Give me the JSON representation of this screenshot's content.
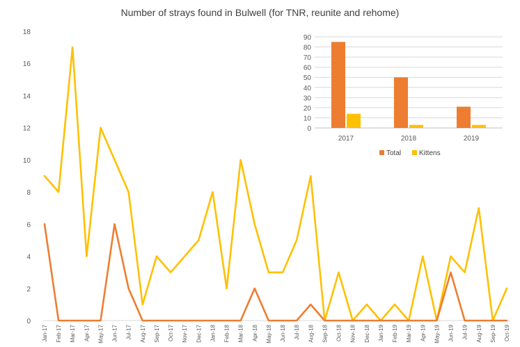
{
  "chart_data": [
    {
      "type": "line",
      "title": "Number of strays found in Bulwell (for TNR, reunite and rehome)",
      "xlabel": "",
      "ylabel": "",
      "ylim": [
        0,
        18
      ],
      "yticks": [
        0,
        2,
        4,
        6,
        8,
        10,
        12,
        14,
        16,
        18
      ],
      "grid": false,
      "legend": "none",
      "categories": [
        "Jan-17",
        "Feb-17",
        "Mar-17",
        "Apr-17",
        "May-17",
        "Jun-17",
        "Jul-17",
        "Aug-17",
        "Sep-17",
        "Oct-17",
        "Nov-17",
        "Dec-17",
        "Jan-18",
        "Feb-18",
        "Mar-18",
        "Apr-18",
        "May-18",
        "Jun-18",
        "Jul-18",
        "Aug-18",
        "Sep-18",
        "Oct-18",
        "Nov-18",
        "Dec-18",
        "Jan-19",
        "Feb-19",
        "Mar-19",
        "Apr-19",
        "May-19",
        "Jun-19",
        "Jul-19",
        "Aug-19",
        "Sep-19",
        "Oct-19"
      ],
      "series": [
        {
          "color": "#FFC000",
          "values": [
            9,
            8,
            17,
            4,
            12,
            10,
            8,
            1,
            4,
            3,
            4,
            5,
            8,
            2,
            10,
            6,
            3,
            3,
            5,
            9,
            0,
            3,
            0,
            1,
            0,
            1,
            0,
            4,
            0,
            4,
            3,
            7,
            0,
            2
          ]
        },
        {
          "color": "#ED7D31",
          "values": [
            6,
            0,
            0,
            0,
            0,
            6,
            2,
            0,
            0,
            0,
            0,
            0,
            0,
            0,
            0,
            2,
            0,
            0,
            0,
            1,
            0,
            0,
            0,
            0,
            0,
            0,
            0,
            0,
            0,
            3,
            0,
            0,
            0,
            0
          ]
        }
      ]
    },
    {
      "type": "bar",
      "title": "",
      "categories": [
        "2017",
        "2018",
        "2019"
      ],
      "ylim": [
        0,
        90
      ],
      "yticks": [
        0,
        10,
        20,
        30,
        40,
        50,
        60,
        70,
        80,
        90
      ],
      "grid": true,
      "legend": "bottom",
      "series": [
        {
          "name": "Total",
          "color": "#ED7D31",
          "values": [
            85,
            50,
            21
          ]
        },
        {
          "name": "Kittens",
          "color": "#FFC000",
          "values": [
            14,
            3,
            3
          ]
        }
      ]
    }
  ]
}
